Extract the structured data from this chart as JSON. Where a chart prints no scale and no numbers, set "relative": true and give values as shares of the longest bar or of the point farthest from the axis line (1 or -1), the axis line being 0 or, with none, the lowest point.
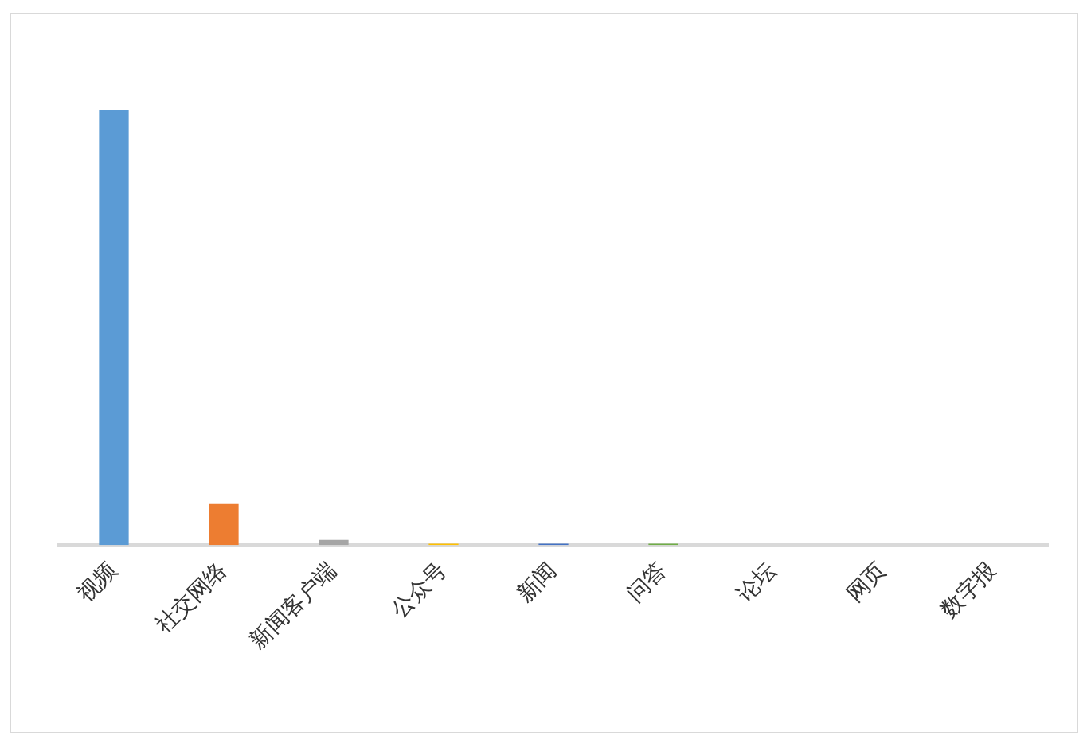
{
  "chart_data": {
    "type": "bar",
    "relative": true,
    "categories": [
      "视频",
      "社交网络",
      "新闻客户端",
      "公众号",
      "新闻",
      "问答",
      "论坛",
      "网页",
      "数字报"
    ],
    "values": [
      1,
      0.096,
      0.012,
      0.003,
      0.003,
      0.003,
      0,
      0,
      0
    ],
    "colors": [
      "#5b9bd5",
      "#ed7d31",
      "#a5a5a5",
      "#ffc000",
      "#4472c4",
      "#70ad47",
      "#255e91",
      "#9e480e",
      "#636363"
    ],
    "grid": false,
    "legend": false
  }
}
